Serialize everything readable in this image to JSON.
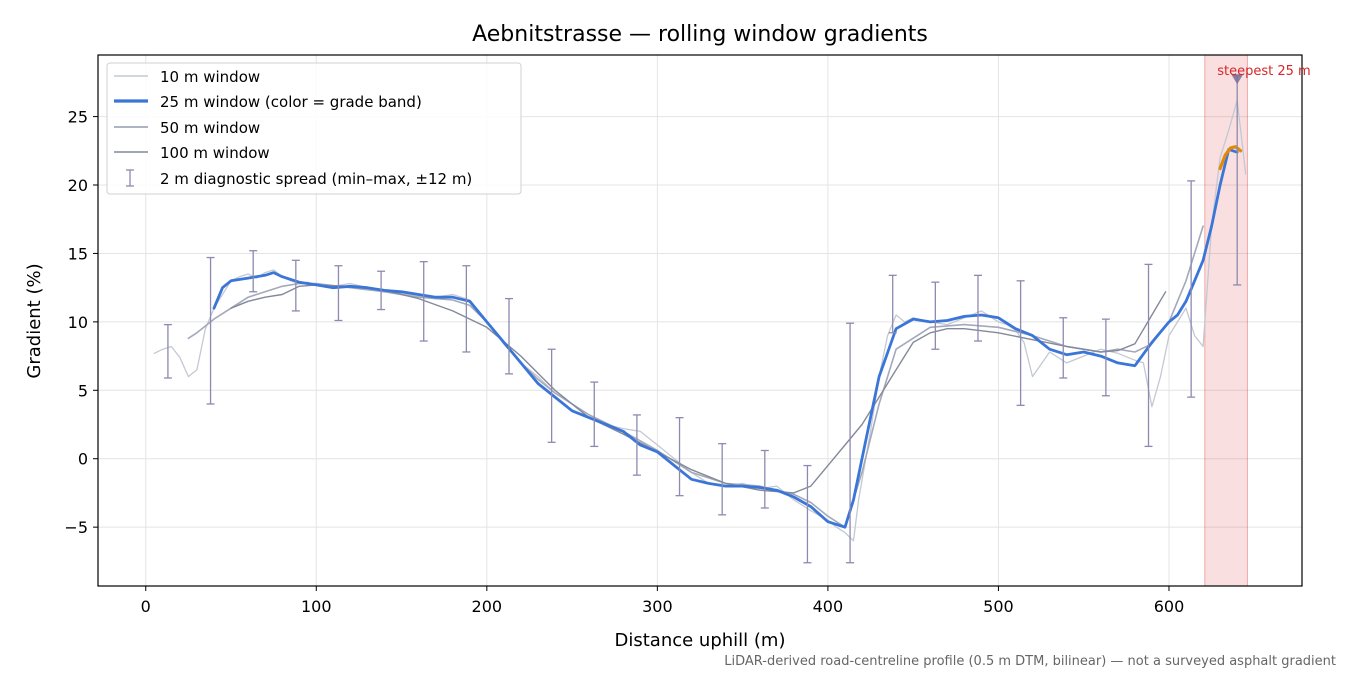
{
  "chart_data": {
    "type": "line",
    "title": "Aebnitstrasse — rolling window gradients",
    "xlabel": "Distance uphill (m)",
    "ylabel": "Gradient (%)",
    "xlim": [
      -28,
      678
    ],
    "ylim": [
      -9.3,
      29.5
    ],
    "xticks": [
      0,
      100,
      200,
      300,
      400,
      500,
      600
    ],
    "yticks": [
      -5,
      0,
      5,
      10,
      15,
      20,
      25
    ],
    "ytick_labels": [
      "−5",
      "0",
      "5",
      "10",
      "15",
      "20",
      "25"
    ],
    "grid": true,
    "legend_position": "upper-left",
    "legend": [
      "10 m window",
      "25 m window (color = grade band)",
      "50 m window",
      "100 m window",
      "2 m diagnostic spread (min–max, ±12 m)"
    ],
    "series": [
      {
        "name": "10 m window",
        "color": "#c3c8d3",
        "x": [
          5,
          10,
          15,
          20,
          25,
          30,
          35,
          40,
          45,
          50,
          55,
          60,
          65,
          70,
          75,
          80,
          85,
          90,
          95,
          100,
          110,
          120,
          130,
          140,
          150,
          160,
          170,
          180,
          190,
          200,
          210,
          220,
          230,
          240,
          250,
          260,
          270,
          280,
          290,
          300,
          310,
          320,
          330,
          340,
          350,
          360,
          370,
          380,
          390,
          400,
          405,
          410,
          415,
          418,
          425,
          430,
          435,
          440,
          445,
          450,
          460,
          470,
          480,
          490,
          500,
          505,
          510,
          515,
          520,
          530,
          540,
          550,
          560,
          570,
          580,
          585,
          590,
          595,
          600,
          605,
          610,
          615,
          620,
          625,
          630,
          635,
          640,
          645
        ],
        "y": [
          7.7,
          8.0,
          8.2,
          7.4,
          6.0,
          6.5,
          9.5,
          11.0,
          12.0,
          13.0,
          13.3,
          13.5,
          13.2,
          13.6,
          13.8,
          13.3,
          13.0,
          12.8,
          12.9,
          12.7,
          12.6,
          12.8,
          12.5,
          12.3,
          12.1,
          11.9,
          11.8,
          12.0,
          11.6,
          10.0,
          8.5,
          7.0,
          6.0,
          4.8,
          4.0,
          3.0,
          2.5,
          2.2,
          2.0,
          1.0,
          0.0,
          -1.0,
          -1.8,
          -2.0,
          -1.8,
          -2.2,
          -2.0,
          -3.0,
          -3.8,
          -4.5,
          -5.0,
          -5.4,
          -6.0,
          -3.0,
          2.0,
          6.0,
          9.0,
          10.5,
          10.0,
          10.3,
          10.0,
          9.8,
          10.3,
          10.8,
          10.0,
          9.8,
          9.4,
          8.5,
          6.0,
          7.8,
          7.0,
          7.5,
          8.0,
          7.7,
          7.2,
          7.0,
          3.8,
          6.0,
          9.0,
          10.0,
          11.0,
          9.0,
          8.2,
          17.0,
          22.0,
          24.0,
          26.2,
          20.8
        ]
      },
      {
        "name": "25 m window (color = grade band)",
        "color": "#3a76d8",
        "x": [
          40,
          45,
          50,
          60,
          70,
          75,
          80,
          90,
          100,
          110,
          120,
          130,
          140,
          150,
          160,
          170,
          180,
          190,
          200,
          210,
          220,
          230,
          240,
          250,
          260,
          270,
          280,
          290,
          300,
          310,
          320,
          330,
          340,
          350,
          360,
          370,
          380,
          390,
          400,
          410,
          415,
          420,
          425,
          430,
          440,
          450,
          460,
          470,
          480,
          490,
          500,
          510,
          520,
          530,
          540,
          550,
          560,
          570,
          580,
          590,
          600,
          605,
          610,
          615,
          620,
          625,
          630,
          635,
          640
        ],
        "y": [
          11.0,
          12.5,
          13.0,
          13.2,
          13.4,
          13.6,
          13.3,
          12.9,
          12.7,
          12.5,
          12.6,
          12.5,
          12.3,
          12.2,
          12.0,
          11.8,
          11.8,
          11.5,
          10.0,
          8.5,
          7.0,
          5.5,
          4.5,
          3.5,
          3.0,
          2.5,
          2.0,
          1.0,
          0.5,
          -0.5,
          -1.5,
          -1.8,
          -2.0,
          -2.0,
          -2.1,
          -2.3,
          -2.8,
          -3.5,
          -4.6,
          -5.0,
          -3.0,
          0.0,
          3.0,
          6.0,
          9.5,
          10.2,
          10.0,
          10.1,
          10.4,
          10.5,
          10.3,
          9.5,
          9.0,
          8.0,
          7.6,
          7.8,
          7.5,
          7.0,
          6.8,
          8.5,
          10.0,
          10.5,
          11.5,
          13.0,
          14.5,
          17.0,
          20.0,
          22.6,
          22.4
        ]
      },
      {
        "name": "50 m window",
        "color": "#a3a9ba",
        "x": [
          25,
          30,
          40,
          50,
          60,
          70,
          80,
          90,
          100,
          120,
          140,
          160,
          180,
          190,
          200,
          210,
          220,
          230,
          240,
          260,
          280,
          300,
          320,
          340,
          360,
          380,
          390,
          400,
          410,
          420,
          430,
          440,
          460,
          480,
          500,
          520,
          540,
          560,
          570,
          580,
          590,
          600,
          610,
          620
        ],
        "y": [
          8.8,
          9.2,
          10.2,
          11.0,
          11.8,
          12.2,
          12.6,
          12.8,
          12.8,
          12.5,
          12.2,
          11.8,
          11.6,
          11.2,
          10.0,
          8.4,
          7.0,
          5.8,
          4.8,
          3.2,
          2.0,
          0.6,
          -1.0,
          -1.8,
          -2.0,
          -2.6,
          -3.2,
          -4.2,
          -5.0,
          -1.0,
          4.0,
          8.0,
          9.6,
          9.8,
          9.6,
          9.0,
          8.2,
          7.8,
          8.0,
          7.8,
          8.4,
          10.0,
          13.0,
          17.0
        ]
      },
      {
        "name": "100 m window",
        "color": "#848999",
        "x": [
          50,
          60,
          70,
          80,
          90,
          100,
          120,
          140,
          160,
          180,
          200,
          220,
          240,
          260,
          280,
          300,
          320,
          340,
          360,
          380,
          390,
          400,
          410,
          420,
          430,
          440,
          450,
          460,
          470,
          480,
          500,
          520,
          540,
          560,
          570,
          580,
          590,
          598
        ],
        "y": [
          11.0,
          11.5,
          11.8,
          12.0,
          12.6,
          12.7,
          12.6,
          12.3,
          11.7,
          10.8,
          9.6,
          7.5,
          5.0,
          3.0,
          1.8,
          0.5,
          -0.8,
          -1.8,
          -2.3,
          -2.5,
          -2.0,
          -0.5,
          1.0,
          2.5,
          4.5,
          6.5,
          8.5,
          9.2,
          9.5,
          9.5,
          9.2,
          8.7,
          8.2,
          7.8,
          7.9,
          8.4,
          10.5,
          12.2
        ]
      },
      {
        "name": "25 m window — steepest band",
        "color": "#e08a0a",
        "x": [
          630,
          633,
          636,
          639,
          642
        ],
        "y": [
          21.2,
          22.2,
          22.7,
          22.8,
          22.5
        ]
      }
    ],
    "error_bars": {
      "name": "2 m diagnostic spread (min–max, ±12 m)",
      "color": "#8c8ab0",
      "x": [
        13,
        38,
        63,
        88,
        113,
        138,
        163,
        188,
        213,
        238,
        263,
        288,
        313,
        338,
        363,
        388,
        413,
        438,
        463,
        488,
        513,
        538,
        563,
        588,
        613,
        640
      ],
      "low": [
        5.9,
        4.0,
        12.2,
        10.8,
        10.1,
        10.9,
        8.6,
        7.8,
        6.2,
        1.2,
        0.9,
        -1.2,
        -2.7,
        -4.1,
        -3.6,
        -7.6,
        -7.6,
        9.2,
        8.0,
        8.6,
        3.9,
        5.9,
        4.6,
        0.9,
        4.5,
        12.7
      ],
      "high": [
        9.8,
        14.7,
        15.2,
        14.5,
        14.1,
        13.7,
        14.4,
        14.1,
        11.7,
        8.0,
        5.6,
        3.2,
        3.0,
        1.1,
        0.6,
        -0.5,
        9.9,
        13.4,
        12.9,
        13.4,
        13.0,
        10.3,
        10.2,
        14.2,
        20.3,
        28.0
      ]
    },
    "highlight_band": {
      "label": "steepest 25 m",
      "x_range": [
        621,
        646
      ],
      "marker_x": 640,
      "marker_y": 27.8,
      "color": "#d62728"
    },
    "footnote": "LiDAR-derived road-centreline profile (0.5 m DTM, bilinear) — not a surveyed asphalt gradient"
  }
}
